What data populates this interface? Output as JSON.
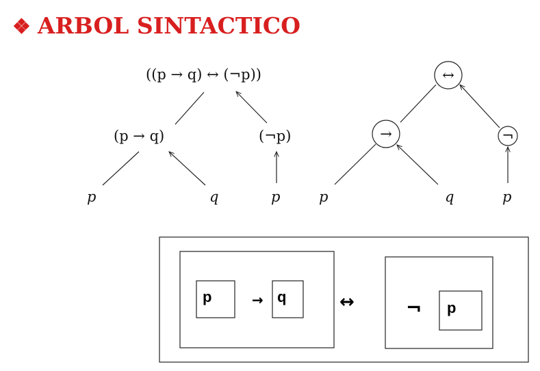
{
  "title": {
    "bullet": "❖",
    "text": "ARBOL SINTACTICO"
  },
  "parse_tree_text": {
    "root": "((p → q) ↔ (¬p))",
    "left_child": "(p → q)",
    "right_child": "(¬p)",
    "leaves": [
      "p",
      "q",
      "p"
    ]
  },
  "parse_tree_circles": {
    "root_op": "↔",
    "left_op": "→",
    "right_op": "¬",
    "leaves": [
      "p",
      "q",
      "p"
    ]
  },
  "box_diagram": {
    "left_p": "p",
    "left_arrow": "→",
    "left_q": "q",
    "biconditional": "↔",
    "negation": "¬",
    "right_p": "p"
  },
  "colors": {
    "title": "#d81f1f",
    "ink": "#111111"
  }
}
